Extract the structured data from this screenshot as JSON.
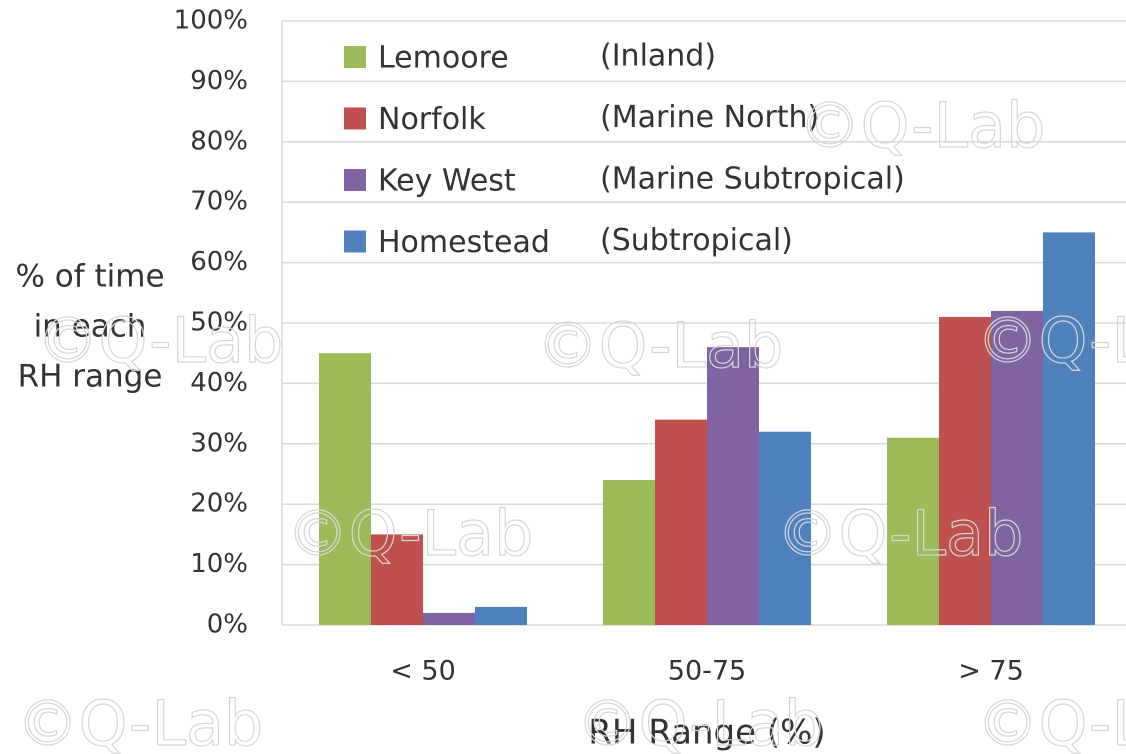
{
  "chart_data": {
    "type": "bar",
    "ylabel": [
      "% of time",
      "in each",
      "RH range"
    ],
    "xlabel": "RH Range (%)",
    "watermark": "©Q-Lab",
    "categories": [
      "< 50",
      "50-75",
      "> 75"
    ],
    "series": [
      {
        "name": "Lemoore",
        "description": "(Inland)",
        "color": "#9bbb59",
        "values": [
          45,
          24,
          31
        ]
      },
      {
        "name": "Norfolk",
        "description": "(Marine North)",
        "color": "#c0504d",
        "values": [
          15,
          34,
          51
        ]
      },
      {
        "name": "Key West",
        "description": "(Marine Subtropical)",
        "color": "#8064a2",
        "values": [
          2,
          46,
          52
        ]
      },
      {
        "name": "Homestead",
        "description": "(Subtropical)",
        "color": "#4f81bd",
        "values": [
          3,
          32,
          65
        ]
      }
    ],
    "ylim": [
      0,
      100
    ],
    "yticks": [
      {
        "value": 0,
        "label": "0%"
      },
      {
        "value": 10,
        "label": "10%"
      },
      {
        "value": 20,
        "label": "20%"
      },
      {
        "value": 30,
        "label": "30%"
      },
      {
        "value": 40,
        "label": "40%"
      },
      {
        "value": 50,
        "label": "50%"
      },
      {
        "value": 60,
        "label": "60%"
      },
      {
        "value": 70,
        "label": "70%"
      },
      {
        "value": 80,
        "label": "80%"
      },
      {
        "value": 90,
        "label": "90%"
      },
      {
        "value": 100,
        "label": "100%"
      }
    ],
    "grid": true
  }
}
